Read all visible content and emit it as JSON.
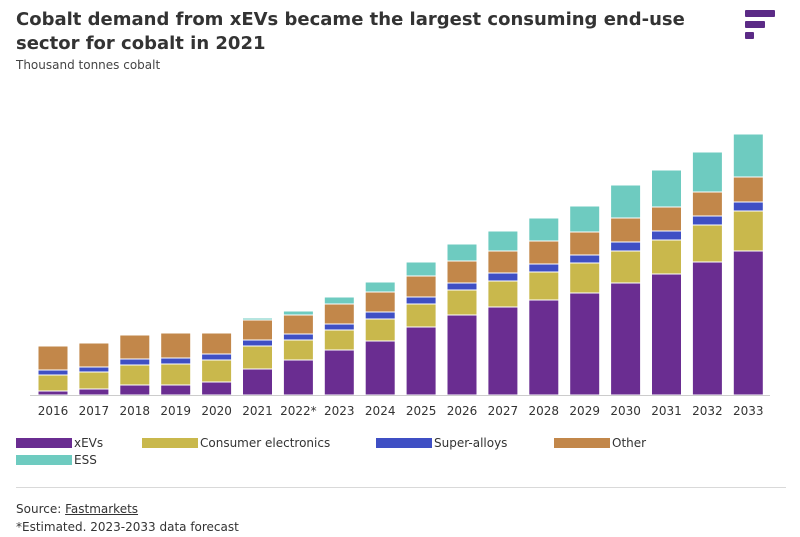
{
  "header": {
    "title": "Cobalt demand from xEVs became the largest consuming end-use sector for cobalt in 2021",
    "subtitle": "Thousand tonnes cobalt"
  },
  "colors": {
    "xEVs": "#6a2d91",
    "Consumer electronics": "#c9b84c",
    "Super-alloys": "#3f4fc4",
    "Other": "#c2874a",
    "ESS": "#6ecbc0",
    "logo": "#5b2a86"
  },
  "chart_data": {
    "type": "bar",
    "stacked": true,
    "title": "Cobalt demand from xEVs became the largest consuming end-use sector for cobalt in 2021",
    "ylabel": "Thousand tonnes cobalt",
    "xlabel": "",
    "ylim": [
      0,
      270
    ],
    "grid": false,
    "legend_position": "bottom",
    "categories": [
      "2016",
      "2017",
      "2018",
      "2019",
      "2020",
      "2021",
      "2022*",
      "2023",
      "2024",
      "2025",
      "2026",
      "2027",
      "2028",
      "2029",
      "2030",
      "2031",
      "2032",
      "2033"
    ],
    "series": [
      {
        "name": "xEVs",
        "values": [
          4,
          6,
          10,
          10,
          13,
          26,
          35,
          45,
          54,
          68,
          80,
          88,
          95,
          102,
          112,
          121,
          133,
          144
        ]
      },
      {
        "name": "Consumer electronics",
        "values": [
          16,
          17,
          20,
          21,
          22,
          23,
          20,
          20,
          22,
          23,
          25,
          26,
          28,
          30,
          32,
          34,
          37,
          40
        ]
      },
      {
        "name": "Super-alloys",
        "values": [
          5,
          5,
          6,
          6,
          6,
          6,
          6,
          6,
          7,
          7,
          7,
          8,
          8,
          8,
          9,
          9,
          9,
          9
        ]
      },
      {
        "name": "Other",
        "values": [
          24,
          24,
          24,
          25,
          21,
          20,
          19,
          20,
          20,
          21,
          22,
          22,
          23,
          23,
          24,
          24,
          24,
          25
        ]
      },
      {
        "name": "ESS",
        "values": [
          0,
          0,
          0,
          1,
          1,
          2,
          4,
          7,
          10,
          14,
          17,
          20,
          23,
          26,
          33,
          37,
          40,
          43
        ]
      }
    ]
  },
  "legend": [
    {
      "label": "xEVs"
    },
    {
      "label": "Consumer electronics"
    },
    {
      "label": "Super-alloys"
    },
    {
      "label": "Other"
    },
    {
      "label": "ESS"
    }
  ],
  "footer": {
    "source_prefix": "Source: ",
    "source_link": "Fastmarkets",
    "note": "*Estimated. 2023-2033 data forecast"
  }
}
